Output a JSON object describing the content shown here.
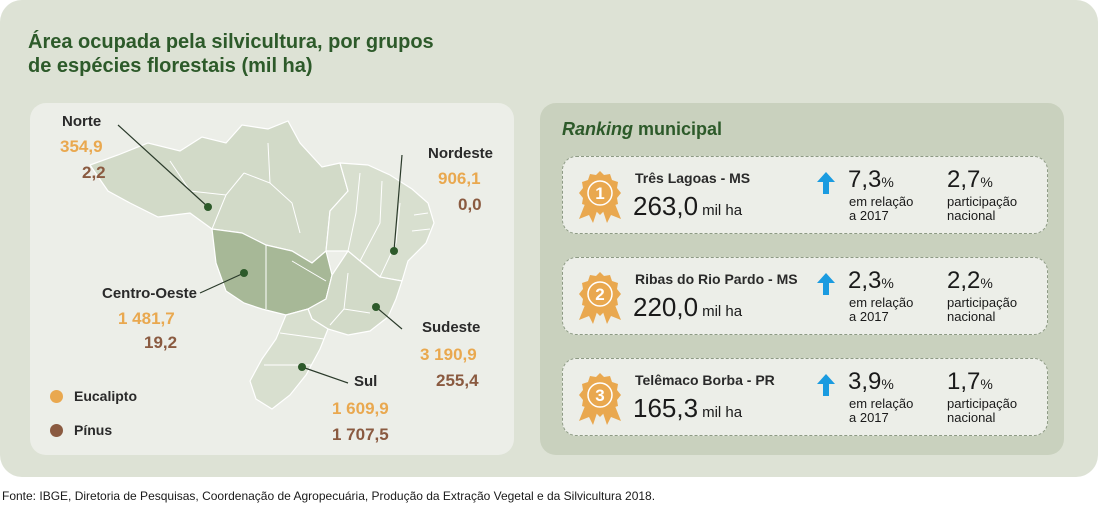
{
  "title": {
    "line1": "Área ocupada pela silvicultura, por grupos",
    "line2": "de espécies florestais (mil ha)"
  },
  "colors": {
    "eucalipto": "#e9a84f",
    "pinus": "#8a5a40",
    "title": "#2d5a2a",
    "up_arrow": "#1a9be0",
    "medal": "#e9a84f"
  },
  "regions": [
    {
      "key": "norte",
      "name": "Norte",
      "eucalipto": "354,9",
      "pinus": "2,2"
    },
    {
      "key": "nordeste",
      "name": "Nordeste",
      "eucalipto": "906,1",
      "pinus": "0,0"
    },
    {
      "key": "centro_oeste",
      "name": "Centro-Oeste",
      "eucalipto": "1 481,7",
      "pinus": "19,2"
    },
    {
      "key": "sudeste",
      "name": "Sudeste",
      "eucalipto": "3 190,9",
      "pinus": "255,4"
    },
    {
      "key": "sul",
      "name": "Sul",
      "eucalipto": "1 609,9",
      "pinus": "1 707,5"
    }
  ],
  "legend": {
    "eucalipto": "Eucalipto",
    "pinus": "Pínus"
  },
  "ranking": {
    "title_italic": "Ranking",
    "title_rest": "municipal",
    "items": [
      {
        "rank": "1",
        "city": "Três Lagoas - MS",
        "area": "263,0",
        "area_unit": "mil ha",
        "change": "7,3",
        "change_unit": "%",
        "change_desc_1": "em relação",
        "change_desc_2": "a 2017",
        "share": "2,7",
        "share_unit": "%",
        "share_desc_1": "participação",
        "share_desc_2": "nacional"
      },
      {
        "rank": "2",
        "city": "Ribas do Rio Pardo - MS",
        "area": "220,0",
        "area_unit": "mil ha",
        "change": "2,3",
        "change_unit": "%",
        "change_desc_1": "em relação",
        "change_desc_2": "a 2017",
        "share": "2,2",
        "share_unit": "%",
        "share_desc_1": "participação",
        "share_desc_2": "nacional"
      },
      {
        "rank": "3",
        "city": "Telêmaco Borba - PR",
        "area": "165,3",
        "area_unit": "mil ha",
        "change": "3,9",
        "change_unit": "%",
        "change_desc_1": "em relação",
        "change_desc_2": "a 2017",
        "share": "1,7",
        "share_unit": "%",
        "share_desc_1": "participação",
        "share_desc_2": "nacional"
      }
    ]
  },
  "source": "Fonte: IBGE, Diretoria de Pesquisas, Coordenação de Agropecuária, Produção da Extração Vegetal e da Silvicultura 2018."
}
